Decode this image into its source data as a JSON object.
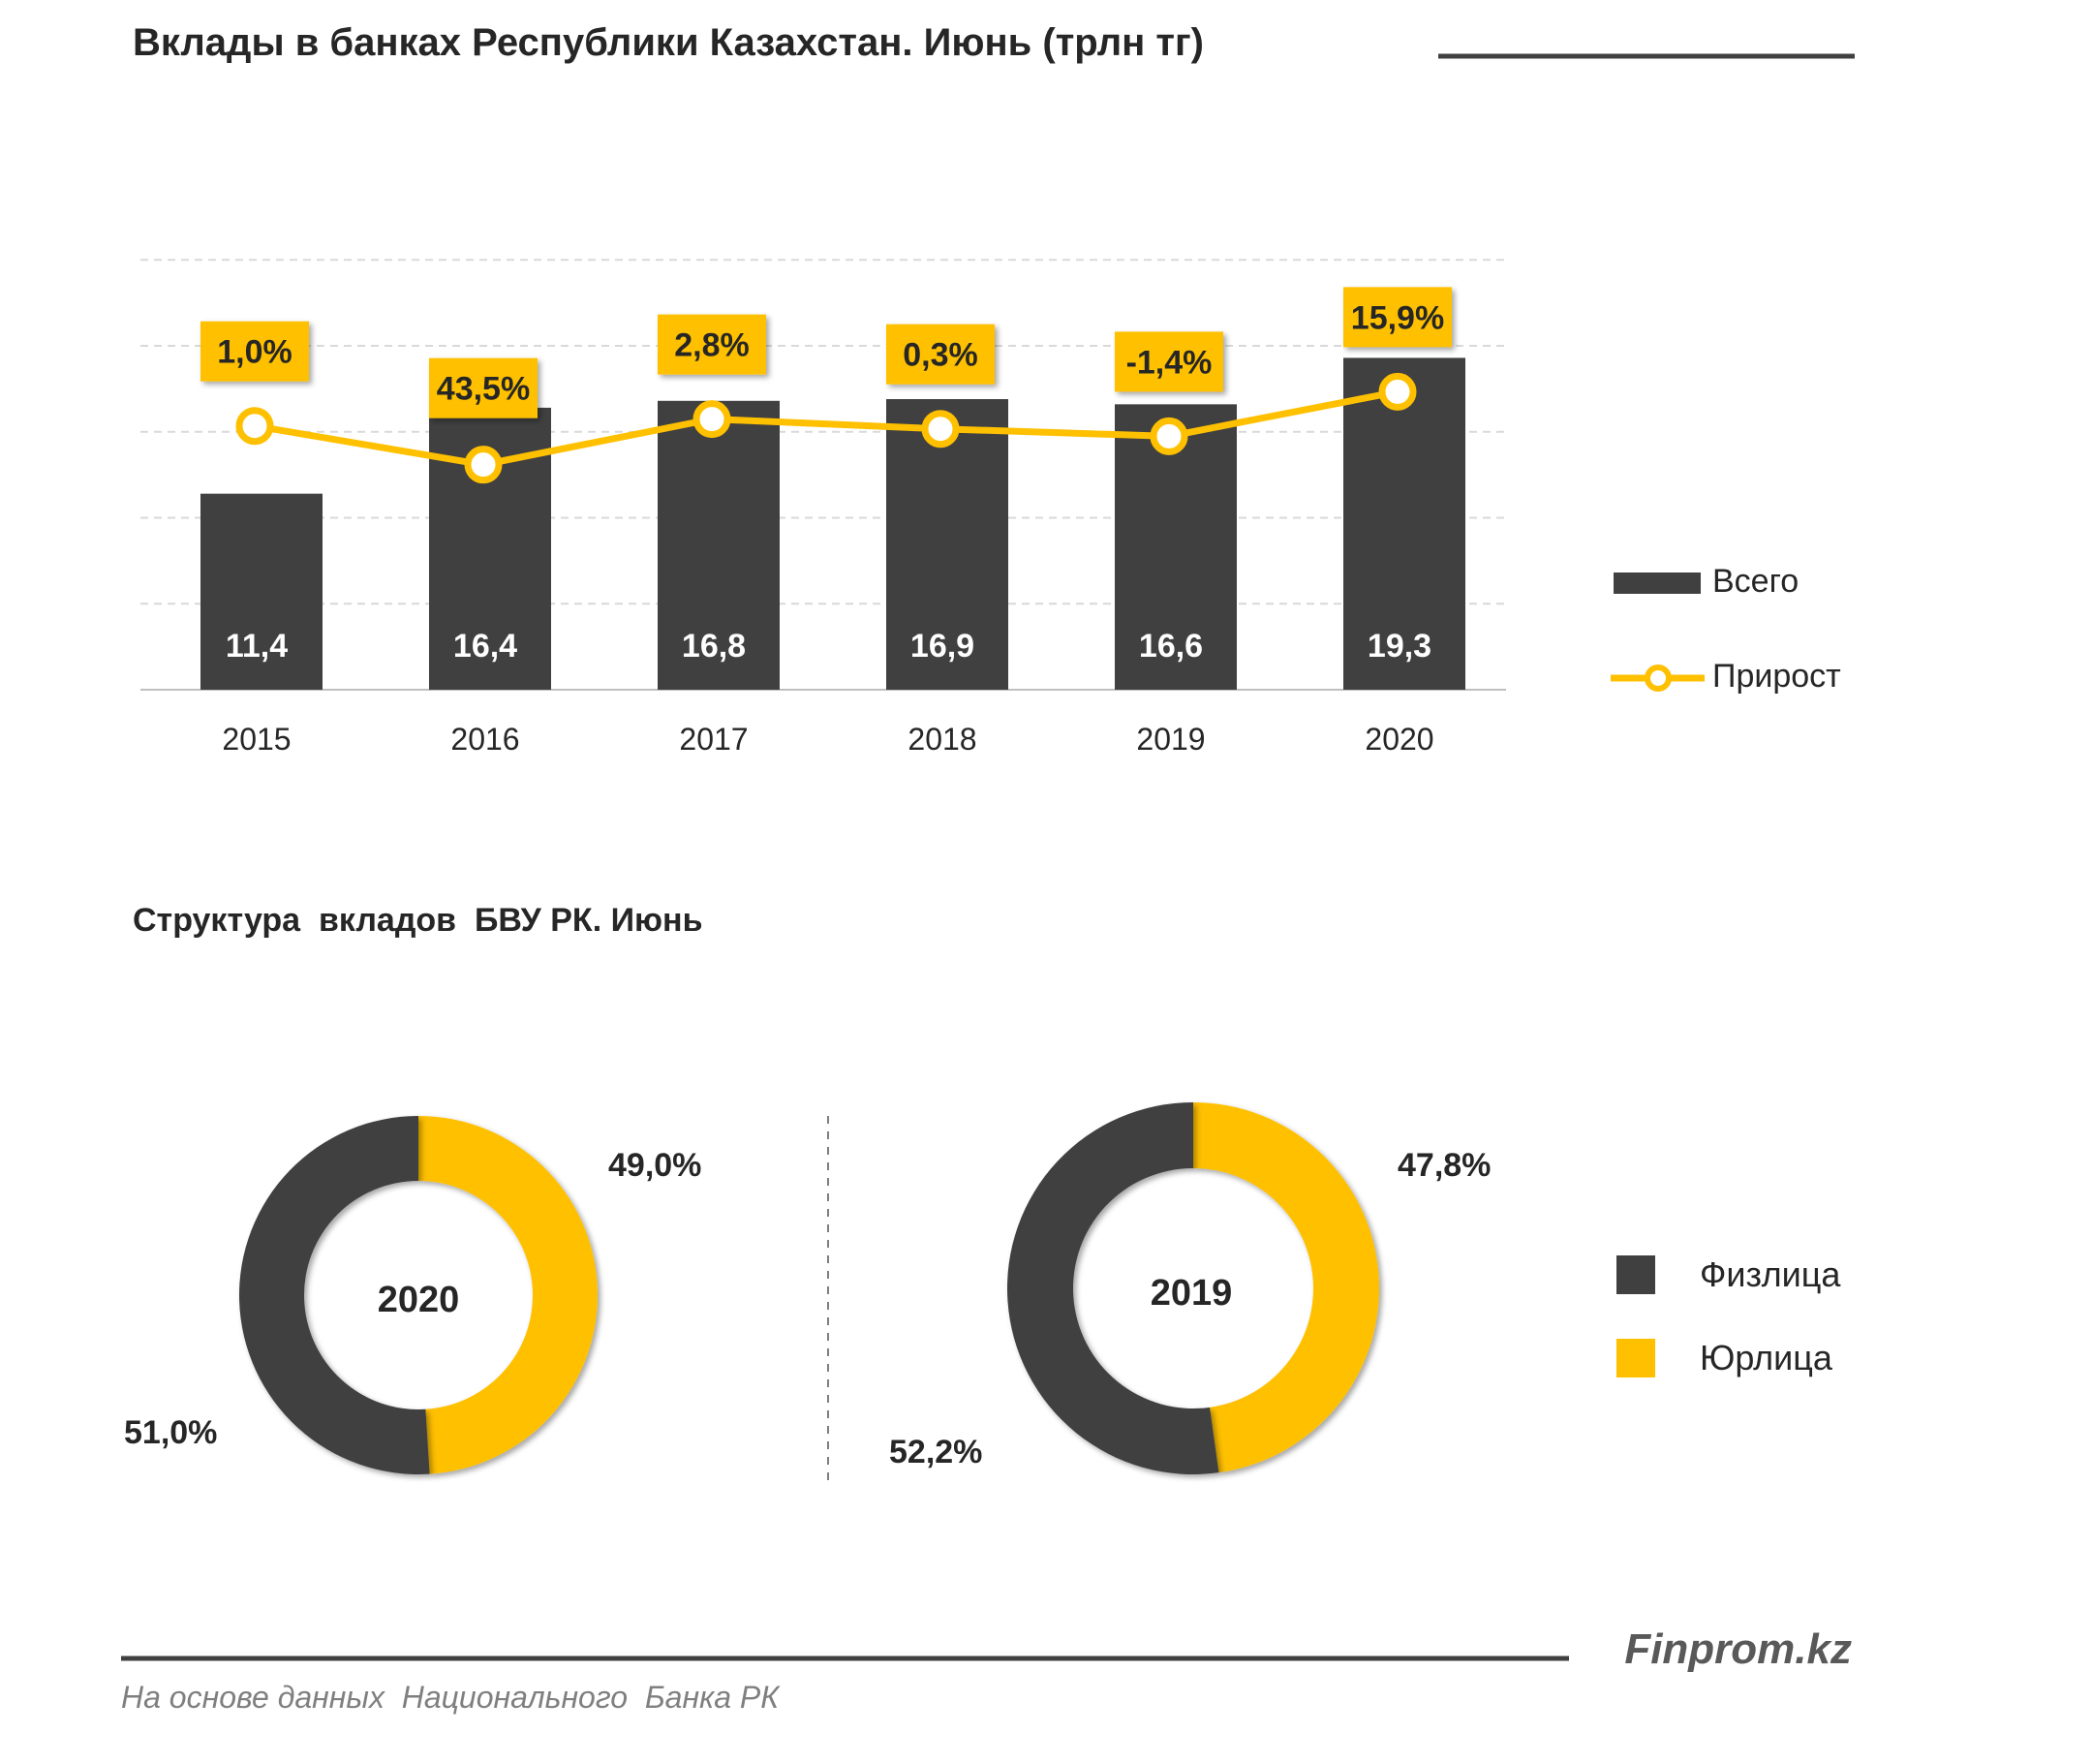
{
  "bar_chart": {
    "title": "Вклады в банках Республики Казахстан. Июнь (трлн тг)"
  },
  "donut_section": {
    "title": "Структура  вкладов  БВУ РК. Июнь"
  },
  "footer": {
    "brand": "Finprom.kz",
    "source": "На основе данных  Национального  Банка РК"
  },
  "colors": {
    "dark": "#404040",
    "yellow": "#FFC000",
    "grid": "#d9d9d9",
    "text": "#262626",
    "footer_text": "#7f7f7f"
  },
  "chart_data": [
    {
      "type": "bar",
      "title": "Вклады в банках Республики Казахстан. Июнь (трлн тг)",
      "categories": [
        "2015",
        "2016",
        "2017",
        "2018",
        "2019",
        "2020"
      ],
      "series": [
        {
          "name": "Всего",
          "type": "bar",
          "color": "#404040",
          "values": [
            11.4,
            16.4,
            16.8,
            16.9,
            16.6,
            19.3
          ],
          "labels": [
            "11,4",
            "16,4",
            "16,8",
            "16,9",
            "16,6",
            "19,3"
          ]
        },
        {
          "name": "Прирост",
          "type": "line",
          "color": "#FFC000",
          "values": [
            1.0,
            43.5,
            2.8,
            0.3,
            -1.4,
            15.9
          ],
          "labels": [
            "1,0%",
            "43,5%",
            "2,8%",
            "0,3%",
            "-1,4%",
            "15,9%"
          ]
        }
      ],
      "ylim": [
        0,
        25
      ],
      "grid": true,
      "legend": "right"
    },
    {
      "type": "pie",
      "center_label": "2020",
      "categories": [
        "Физлица",
        "Юрлица"
      ],
      "values": [
        51.0,
        49.0
      ],
      "labels": [
        "51,0%",
        "49,0%"
      ],
      "colors": [
        "#404040",
        "#FFC000"
      ]
    },
    {
      "type": "pie",
      "center_label": "2019",
      "categories": [
        "Физлица",
        "Юрлица"
      ],
      "values": [
        52.2,
        47.8
      ],
      "labels": [
        "52,2%",
        "47,8%"
      ],
      "colors": [
        "#404040",
        "#FFC000"
      ],
      "legend": "right"
    }
  ]
}
